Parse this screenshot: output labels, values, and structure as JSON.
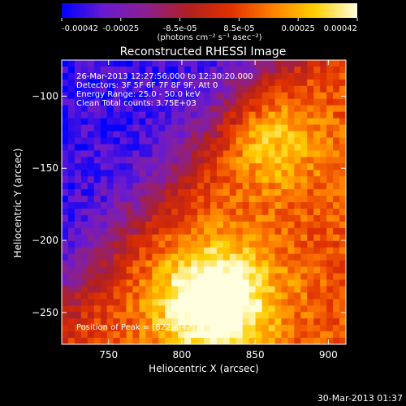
{
  "chart_data": {
    "type": "heatmap",
    "title": "Reconstructed RHESSI Image",
    "xlabel": "Heliocentric X (arcsec)",
    "ylabel": "Heliocentric Y (arcsec)",
    "xlim": [
      718,
      912
    ],
    "ylim": [
      -272,
      -75
    ],
    "x_ticks": [
      750,
      800,
      850,
      900
    ],
    "y_ticks": [
      -100,
      -150,
      -200,
      -250
    ],
    "colorbar": {
      "ticks": [
        "-0.00042",
        "-0.00025",
        "-8.5e-05",
        "8.5e-05",
        "0.00025",
        "0.00042"
      ],
      "unit_label": "(photons cm⁻² s⁻¹ asec⁻²)",
      "range": [
        -0.00042,
        0.00042
      ],
      "colors": [
        "#0000ff",
        "#6a1ad0",
        "#8a2090",
        "#b02020",
        "#e03000",
        "#ff8000",
        "#ffd000",
        "#ffffe0"
      ]
    },
    "info_lines": [
      "26-Mar-2013 12:27:56.000 to 12:30:20.000",
      "Detectors: 3F 5F 6F 7F 8F 9F, Att 0",
      "Energy Range: 25.0 - 50.0 keV",
      "Clean    Total counts: 3.75E+03"
    ],
    "peak_label": "Position of Peak = [822,-242]",
    "peak": [
      822,
      -242
    ],
    "grid": false
  },
  "footer": {
    "date": "30-Mar-2013 01:37"
  }
}
